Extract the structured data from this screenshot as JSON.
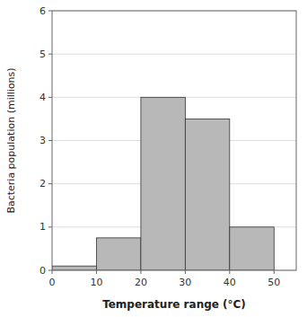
{
  "chart_data": {
    "type": "histogram",
    "bins": [
      0,
      10,
      20,
      30,
      40,
      50
    ],
    "values": [
      0.1,
      0.75,
      4.0,
      3.5,
      1.0
    ],
    "color": "#b8b8b8",
    "xlim": [
      0,
      55
    ],
    "ylim": [
      0,
      6
    ],
    "xticks": [
      0,
      10,
      20,
      30,
      40,
      50
    ],
    "yticks": [
      0,
      1,
      2,
      3,
      4,
      5,
      6
    ],
    "xlabel": "Temperature range (°C)",
    "ylabel": "Bacteria population (millions)",
    "grid": true
  }
}
